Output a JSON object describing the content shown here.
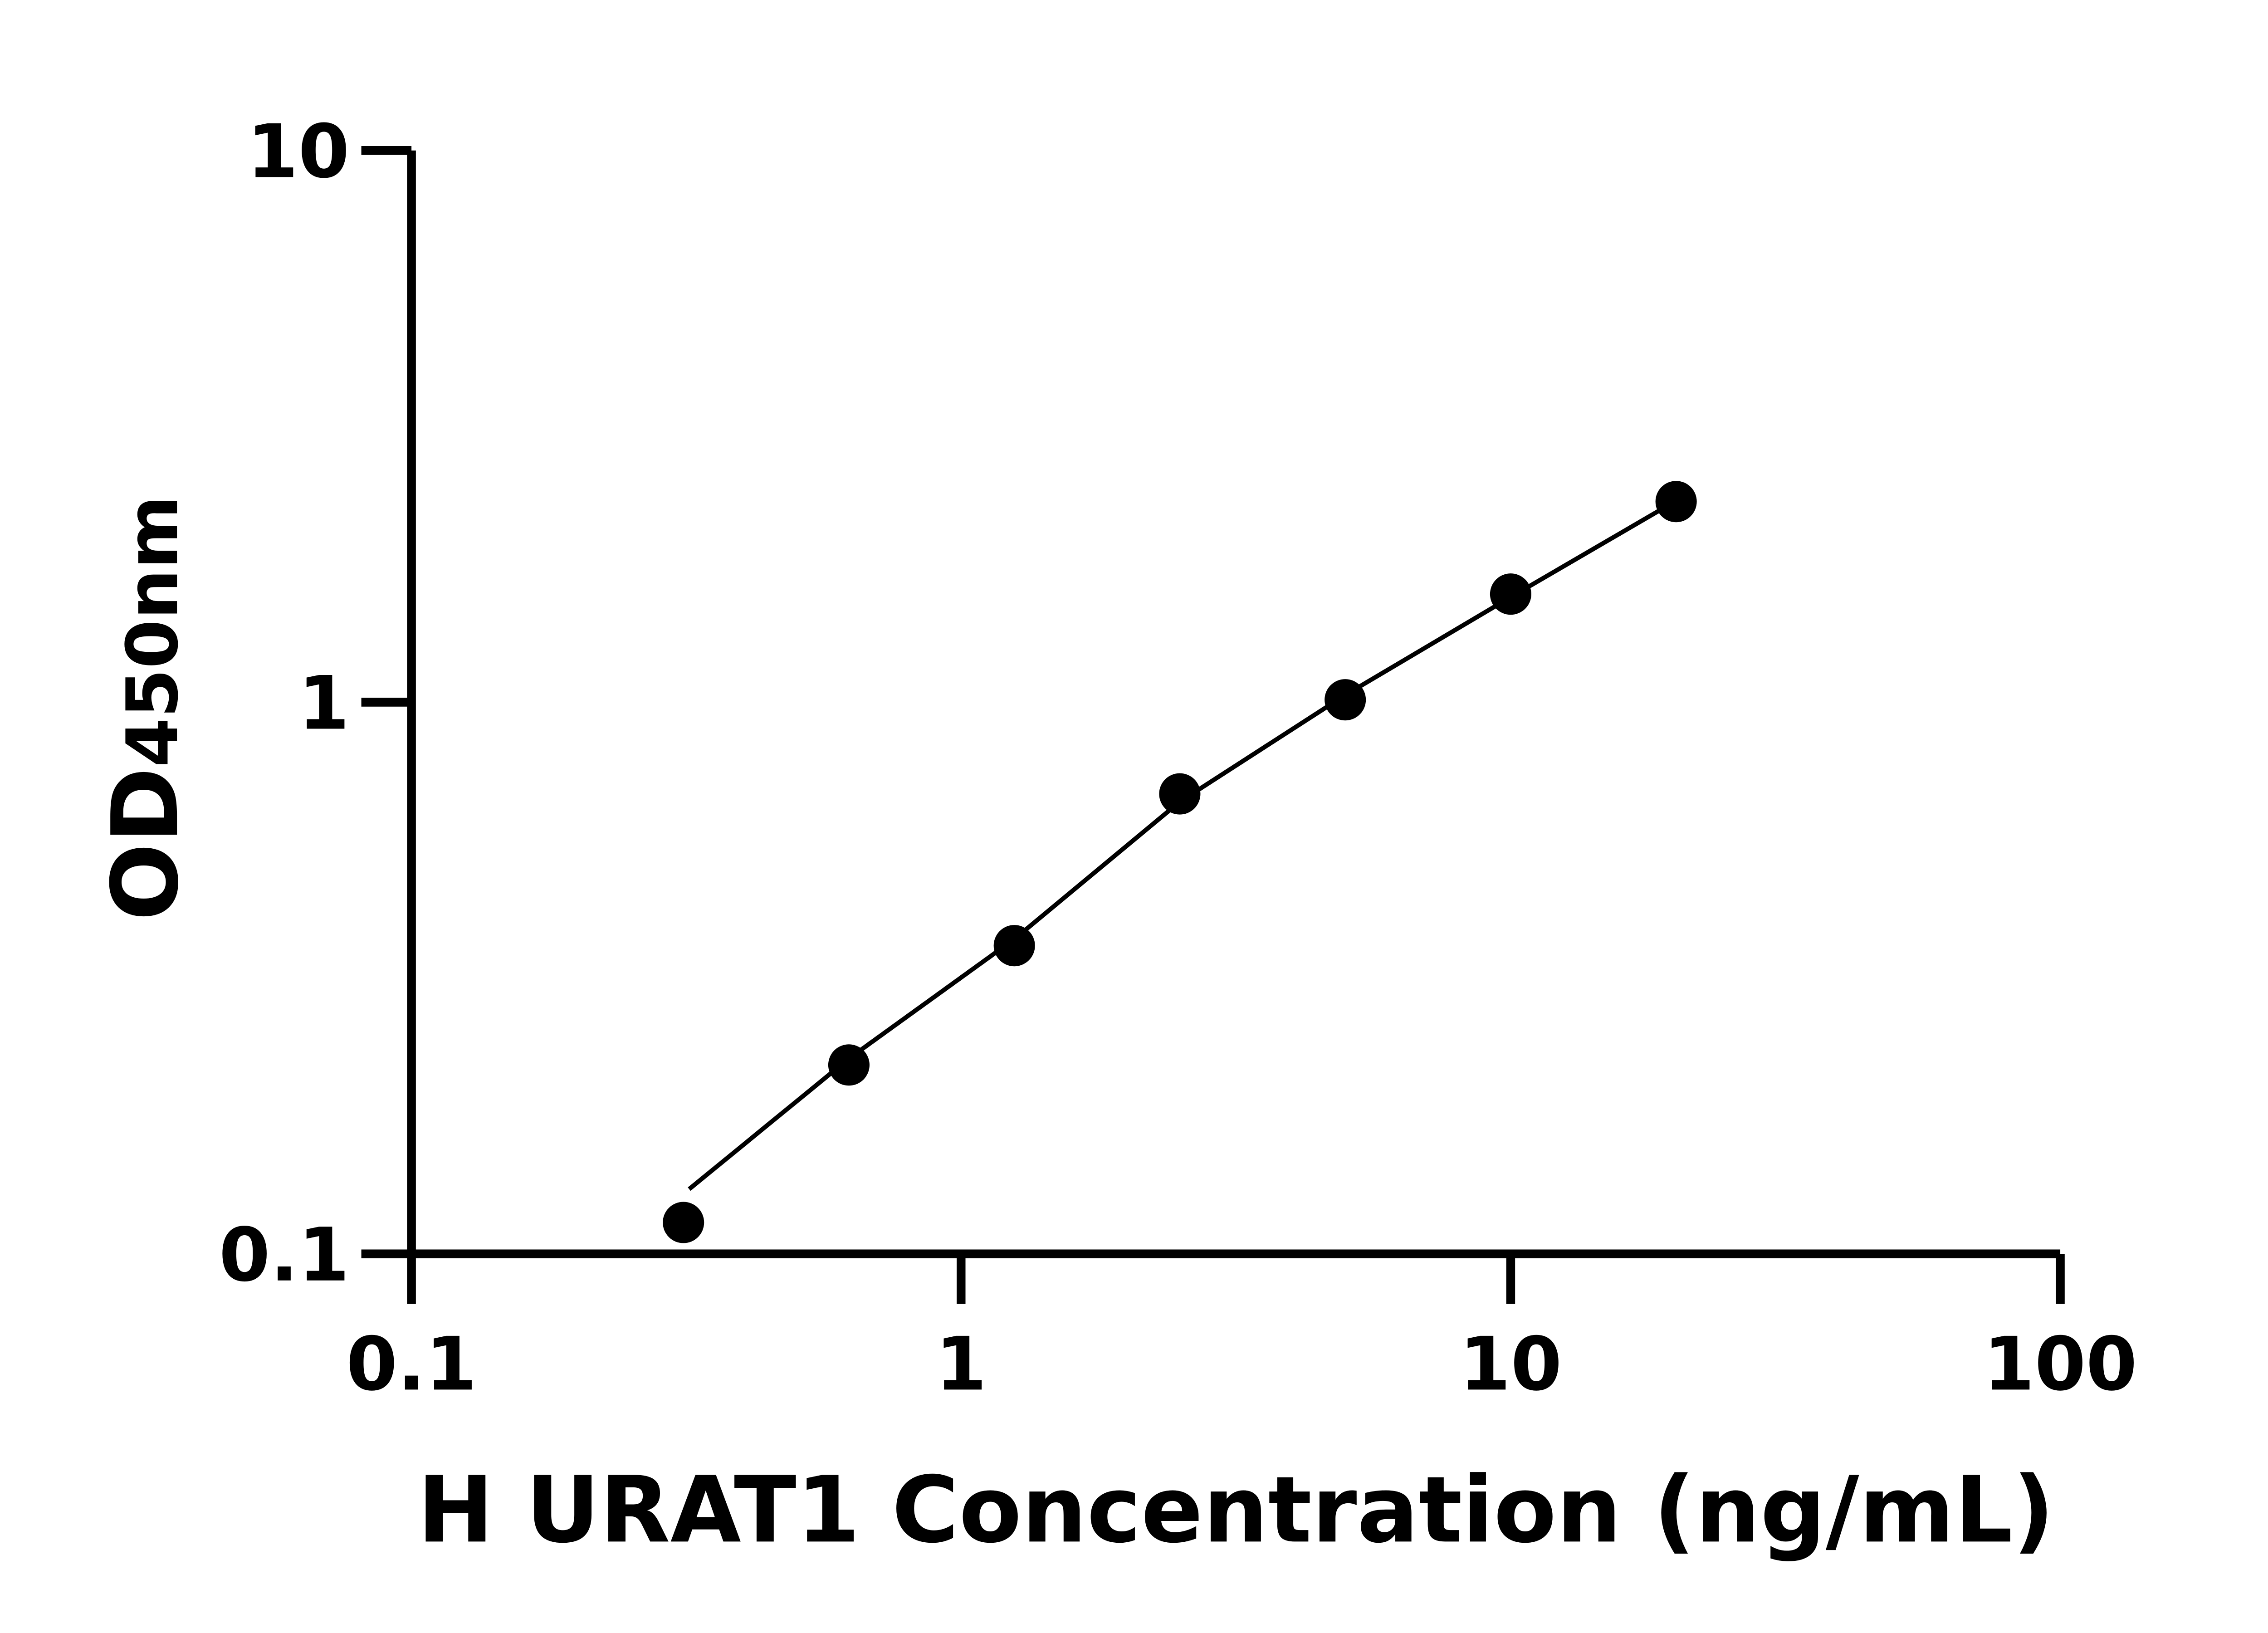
{
  "chart_data": {
    "type": "scatter",
    "title": "",
    "xlabel": "H URAT1 Concentration (ng/mL)",
    "ylabel_main": "OD",
    "ylabel_sub": "450nm",
    "x_scale": "log",
    "y_scale": "log",
    "xlim": [
      0.1,
      100
    ],
    "ylim": [
      0.1,
      10
    ],
    "x_ticks": [
      0.1,
      1,
      10,
      100
    ],
    "x_tick_labels": [
      "0.1",
      "1",
      "10",
      "100"
    ],
    "y_ticks": [
      0.1,
      1,
      10
    ],
    "y_tick_labels": [
      "0.1",
      "1",
      "10"
    ],
    "grid": false,
    "legend": "none",
    "series": [
      {
        "x": [
          0.3125,
          0.625,
          1.25,
          2.5,
          5,
          10,
          20
        ],
        "y": [
          0.114,
          0.22,
          0.362,
          0.682,
          1.01,
          1.57,
          2.31
        ],
        "marker": "filled-circle",
        "color": "#000000"
      }
    ],
    "fit_curve": {
      "x": [
        0.32,
        0.625,
        1.25,
        2.5,
        5,
        10,
        19
      ],
      "y": [
        0.131,
        0.226,
        0.372,
        0.66,
        1.03,
        1.55,
        2.25
      ],
      "color": "#000000"
    }
  }
}
